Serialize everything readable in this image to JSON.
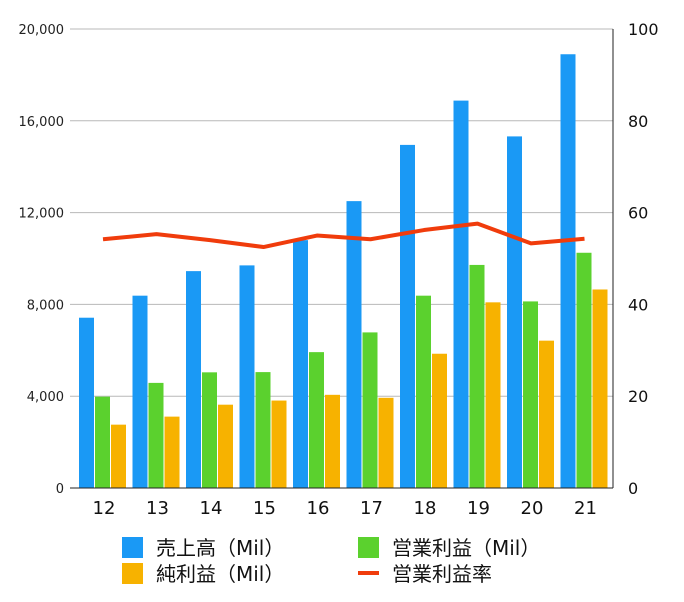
{
  "chart_data": {
    "type": "bar",
    "categories": [
      "12",
      "13",
      "14",
      "15",
      "16",
      "17",
      "18",
      "19",
      "20",
      "21"
    ],
    "series": [
      {
        "name": "売上高（Mil）",
        "kind": "bar",
        "axis": "left",
        "color": "#1a99f5",
        "values": [
          7420,
          8380,
          9450,
          9700,
          10800,
          12500,
          14950,
          16880,
          15320,
          18900
        ]
      },
      {
        "name": "営業利益（Mil）",
        "kind": "bar",
        "axis": "left",
        "color": "#5bd12e",
        "values": [
          3980,
          4580,
          5040,
          5050,
          5920,
          6780,
          8380,
          9720,
          8130,
          10250
        ]
      },
      {
        "name": "純利益（Mil）",
        "kind": "bar",
        "axis": "left",
        "color": "#f7b200",
        "values": [
          2760,
          3110,
          3630,
          3810,
          4060,
          3930,
          5850,
          8090,
          6420,
          8650
        ]
      },
      {
        "name": "営業利益率",
        "kind": "line",
        "axis": "right",
        "color": "#f03c0c",
        "values": [
          54.2,
          55.3,
          54.0,
          52.5,
          55.0,
          54.2,
          56.2,
          57.6,
          53.3,
          54.3
        ]
      }
    ],
    "left_axis": {
      "min": 0,
      "max": 20000,
      "ticks": [
        "0",
        "4,000",
        "8,000",
        "12,000",
        "16,000",
        "20,000"
      ]
    },
    "right_axis": {
      "min": 0,
      "max": 100,
      "ticks": [
        "0",
        "20",
        "40",
        "60",
        "80",
        "100"
      ]
    },
    "grid": true,
    "legend_position": "bottom",
    "legend_order": [
      0,
      1,
      2,
      3
    ]
  }
}
